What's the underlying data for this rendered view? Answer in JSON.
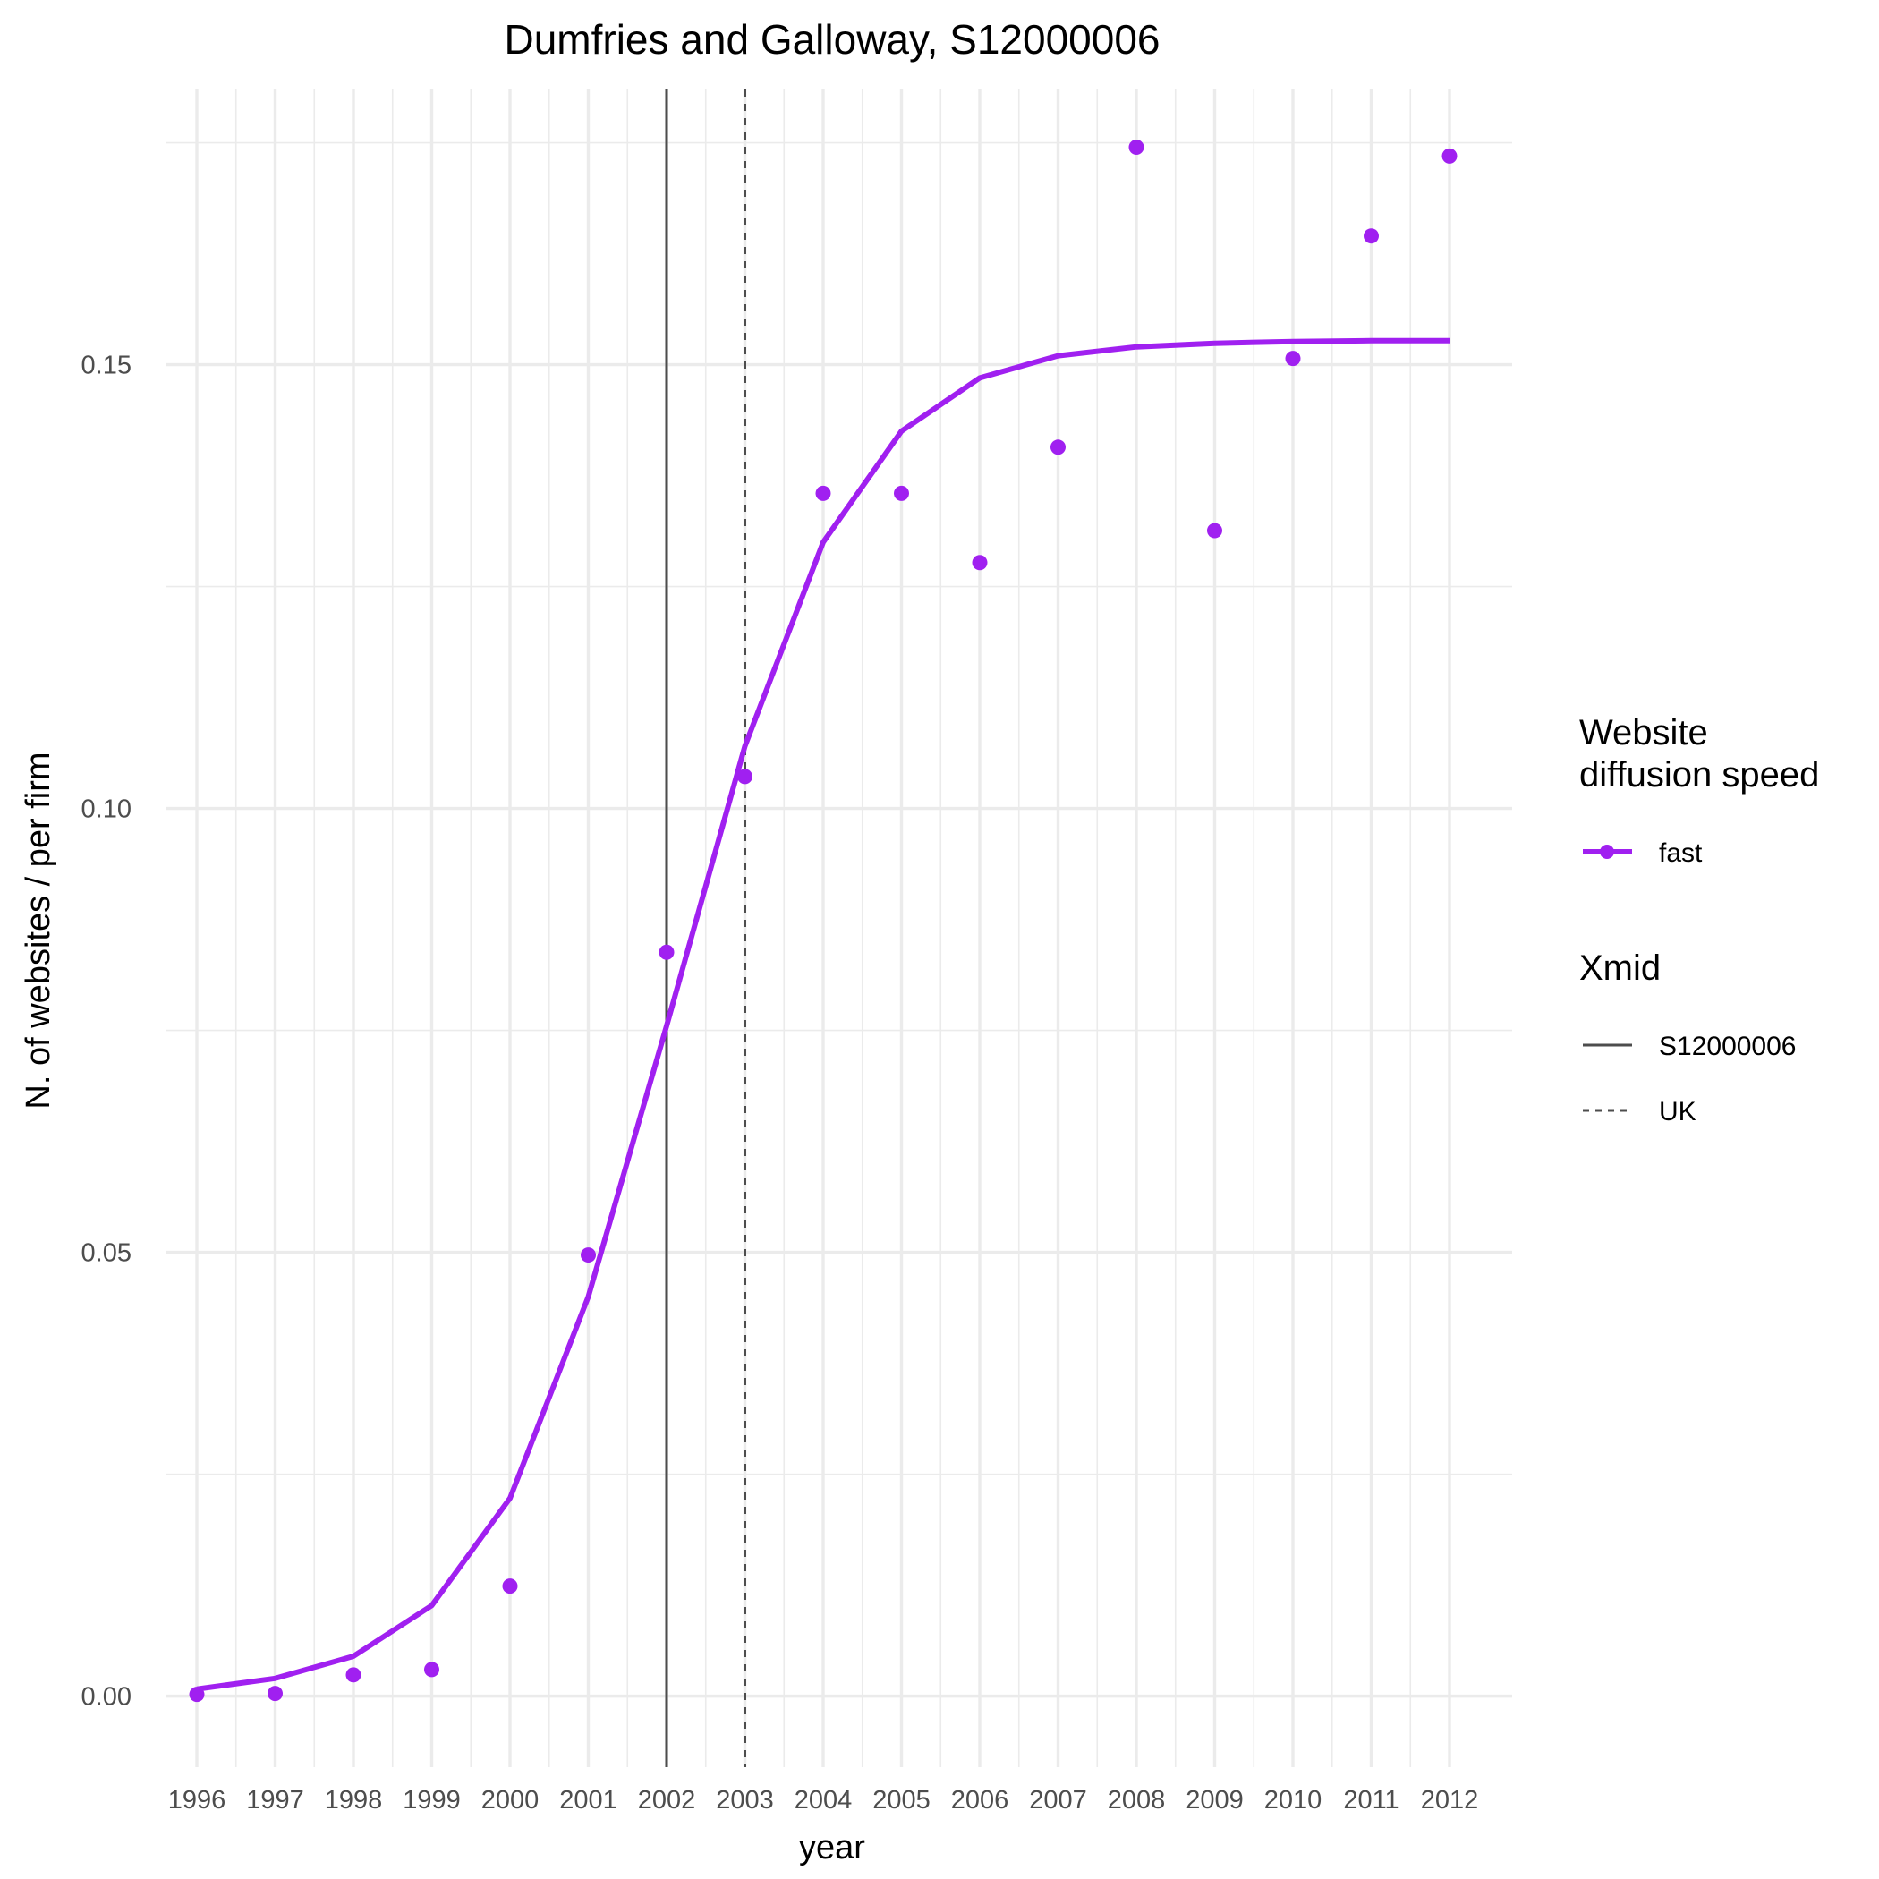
{
  "chart_data": {
    "type": "line",
    "title": "Dumfries and Galloway, S12000006",
    "xlabel": "year",
    "ylabel": "N. of websites / per firm",
    "x": [
      1996,
      1997,
      1998,
      1999,
      2000,
      2001,
      2002,
      2003,
      2004,
      2005,
      2006,
      2007,
      2008,
      2009,
      2010,
      2011,
      2012
    ],
    "xlim": [
      1995.6,
      2012.8
    ],
    "ylim": [
      -0.008,
      0.181
    ],
    "yticks": [
      0.0,
      0.05,
      0.1,
      0.15
    ],
    "ytick_labels": [
      "0.00",
      "0.05",
      "0.10",
      "0.15"
    ],
    "grid": true,
    "series": [
      {
        "name": "fast",
        "kind": "fitted-line",
        "color": "#A020F0",
        "values": [
          0.0008,
          0.002,
          0.0045,
          0.0102,
          0.0223,
          0.045,
          0.0755,
          0.107,
          0.13,
          0.1425,
          0.1485,
          0.151,
          0.152,
          0.1524,
          0.1526,
          0.1527,
          0.1527
        ]
      },
      {
        "name": "fast",
        "kind": "points",
        "color": "#A020F0",
        "values": [
          0.0002,
          0.0003,
          0.0024,
          0.003,
          0.0124,
          0.0497,
          0.0838,
          0.1036,
          0.1355,
          0.1355,
          0.1277,
          0.1407,
          0.1745,
          0.1313,
          0.1507,
          0.1645,
          0.1735
        ]
      }
    ],
    "vlines": [
      {
        "name": "S12000006",
        "x": 2002,
        "linetype": "solid",
        "color": "#4d4d4d"
      },
      {
        "name": "UK",
        "x": 2003,
        "linetype": "dashed",
        "color": "#4d4d4d"
      }
    ],
    "legend": {
      "placement": "right",
      "groups": [
        {
          "title_lines": [
            "Website",
            "diffusion speed"
          ],
          "entries": [
            {
              "label": "fast",
              "symbol": "line-point",
              "color": "#A020F0"
            }
          ]
        },
        {
          "title_lines": [
            "Xmid"
          ],
          "entries": [
            {
              "label": "S12000006",
              "symbol": "solid-line",
              "color": "#4d4d4d"
            },
            {
              "label": "UK",
              "symbol": "dashed-line",
              "color": "#4d4d4d"
            }
          ]
        }
      ]
    }
  }
}
